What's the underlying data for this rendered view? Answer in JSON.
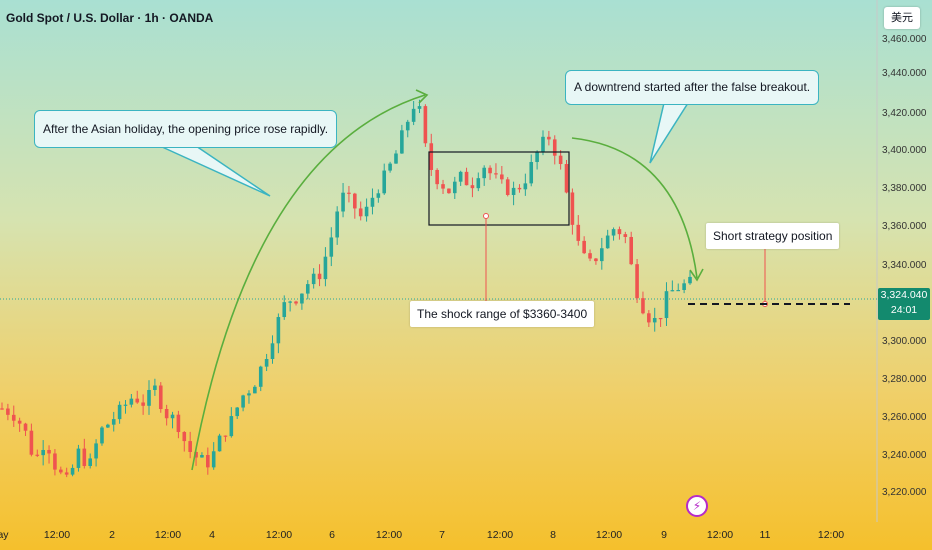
{
  "header": {
    "title": "Gold Spot / U.S. Dollar · 1h · OANDA",
    "currency_button": "美元"
  },
  "price_tag": {
    "price": "3,324.040",
    "countdown": "24:01"
  },
  "annotations": {
    "asian_holiday": "After the Asian holiday, the opening price rose rapidly.",
    "downtrend": "A downtrend started after the false breakout.",
    "shock_range": "The shock range of $3360-3400",
    "short_position": "Short strategy position"
  },
  "colors": {
    "bull": "#26a69a",
    "bear": "#ef5350",
    "arrow": "#5aae3e",
    "callout_border": "#3bb4c1",
    "price_tag": "#138a6e"
  },
  "icons": {
    "flash": "lightning-bolt-icon"
  },
  "chart_data": {
    "type": "candlestick",
    "symbol": "Gold Spot / U.S. Dollar",
    "interval": "1h",
    "current_price": 3324.04,
    "y_ticks": [
      "3,460.000",
      "3,440.000",
      "3,420.000",
      "3,400.000",
      "3,380.000",
      "3,360.000",
      "3,340.000",
      "3,320.000",
      "3,300.000",
      "3,280.000",
      "3,260.000",
      "3,240.000",
      "3,220.000"
    ],
    "ylim": [
      3207,
      3464
    ],
    "x_ticks": [
      "ay",
      "12:00",
      "2",
      "12:00",
      "4",
      "12:00",
      "6",
      "12:00",
      "7",
      "12:00",
      "8",
      "12:00",
      "9",
      "12:00",
      "11",
      "12:00"
    ],
    "shock_range": [
      3360,
      3400
    ],
    "anchors": [
      3255,
      3252,
      3244,
      3225,
      3238,
      3220,
      3213,
      3230,
      3222,
      3242,
      3248,
      3255,
      3262,
      3258,
      3266,
      3252,
      3248,
      3232,
      3226,
      3224,
      3238,
      3248,
      3262,
      3268,
      3282,
      3300,
      3316,
      3318,
      3326,
      3330,
      3348,
      3376,
      3372,
      3362,
      3376,
      3386,
      3398,
      3416,
      3432,
      3394,
      3384,
      3378,
      3386,
      3382,
      3394,
      3386,
      3380,
      3378,
      3386,
      3400,
      3410,
      3396,
      3368,
      3342,
      3336,
      3348,
      3357,
      3354,
      3324,
      3308,
      3304,
      3320,
      3324,
      3326
    ]
  }
}
